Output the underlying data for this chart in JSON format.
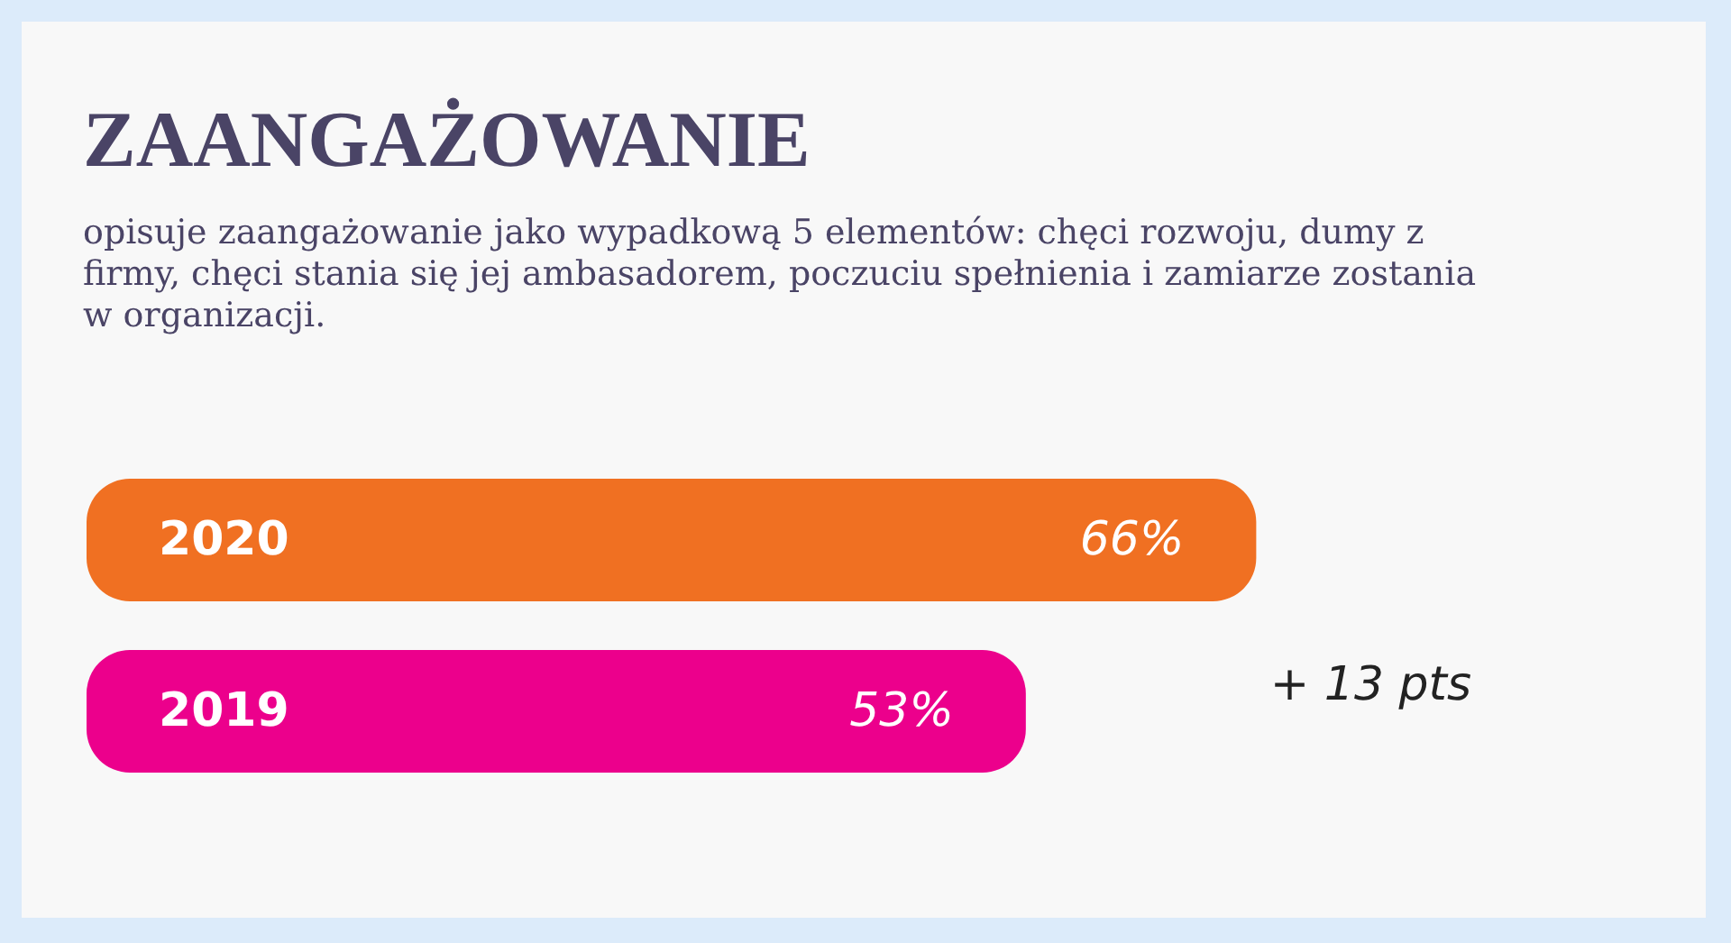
{
  "chart_data": {
    "type": "bar",
    "orientation": "horizontal",
    "title": "ZAANGAŻOWANIE",
    "subtitle": "opisuje zaangażowanie jako wypadkową 5 elementów: chęci rozwoju, dumy z firmy, chęci stania się jej ambasadorem, poczuciu spełnienia i zamiarze zostania w organizacji.",
    "categories": [
      "2020",
      "2019"
    ],
    "values": [
      66,
      53
    ],
    "colors": [
      "#f07022",
      "#ec008c"
    ],
    "value_labels": [
      "66%",
      "53%"
    ],
    "annotations": [
      "+ 13 pts"
    ]
  }
}
